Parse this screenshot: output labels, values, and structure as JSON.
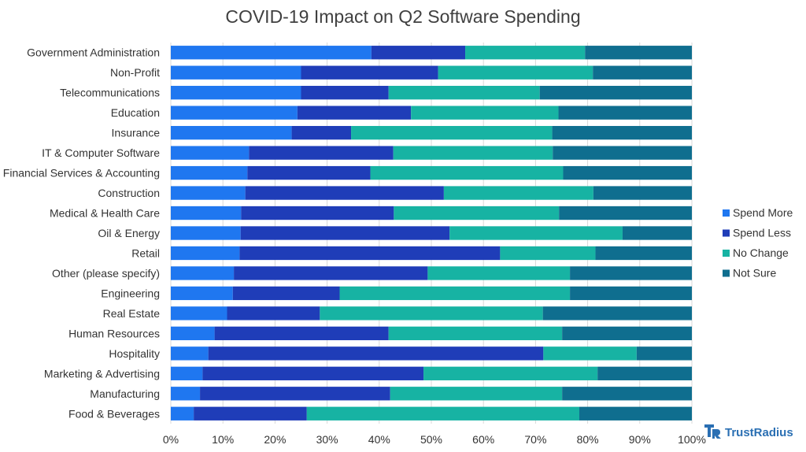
{
  "brand": {
    "name": "TrustRadius",
    "icon": "trustradius-logo-icon",
    "color": "#2a6fb3"
  },
  "chart_data": {
    "type": "bar",
    "orientation": "horizontal",
    "stacked": true,
    "stack_mode": "percent",
    "title": "COVID-19 Impact on Q2 Software Spending",
    "xlabel": "",
    "ylabel": "",
    "xlim": [
      0,
      100
    ],
    "x_ticks": [
      "0%",
      "10%",
      "20%",
      "30%",
      "40%",
      "50%",
      "60%",
      "70%",
      "80%",
      "90%",
      "100%"
    ],
    "grid": true,
    "legend_position": "right",
    "categories": [
      "Government Administration",
      "Non-Profit",
      "Telecommunications",
      "Education",
      "Insurance",
      "IT & Computer Software",
      "Financial Services & Accounting",
      "Construction",
      "Medical & Health Care",
      "Oil & Energy",
      "Retail",
      "Other (please specify)",
      "Engineering",
      "Real Estate",
      "Human Resources",
      "Hospitality",
      "Marketing & Advertising",
      "Manufacturing",
      "Food & Beverages"
    ],
    "series": [
      {
        "name": "Spend More",
        "color": "#1f77f0",
        "values": [
          38.5,
          25,
          25,
          24.3,
          23.2,
          15,
          14.7,
          14.3,
          13.5,
          13.4,
          13.2,
          12.1,
          11.9,
          10.8,
          8.4,
          7.2,
          6.1,
          5.6,
          4.4
        ]
      },
      {
        "name": "Spend Less",
        "color": "#1f3db8",
        "values": [
          18,
          26.3,
          16.8,
          21.8,
          11.4,
          27.7,
          23.6,
          38.1,
          29.3,
          40.1,
          50,
          37.2,
          20.5,
          17.8,
          33.4,
          64.3,
          42.4,
          36.5,
          21.7
        ]
      },
      {
        "name": "No Change",
        "color": "#17b3a3",
        "values": [
          23,
          29.7,
          29,
          28.3,
          38.6,
          30.6,
          37,
          28.7,
          31.7,
          33.2,
          18.3,
          27.3,
          44.2,
          42.8,
          33.3,
          17.9,
          33.4,
          33,
          52.3
        ]
      },
      {
        "name": "Not Sure",
        "color": "#0f6e8f",
        "values": [
          20.5,
          19,
          29.2,
          25.6,
          26.8,
          26.7,
          24.7,
          18.9,
          25.5,
          13.3,
          18.5,
          23.4,
          23.4,
          28.6,
          24.9,
          10.6,
          18.1,
          24.9,
          21.6
        ]
      }
    ]
  }
}
